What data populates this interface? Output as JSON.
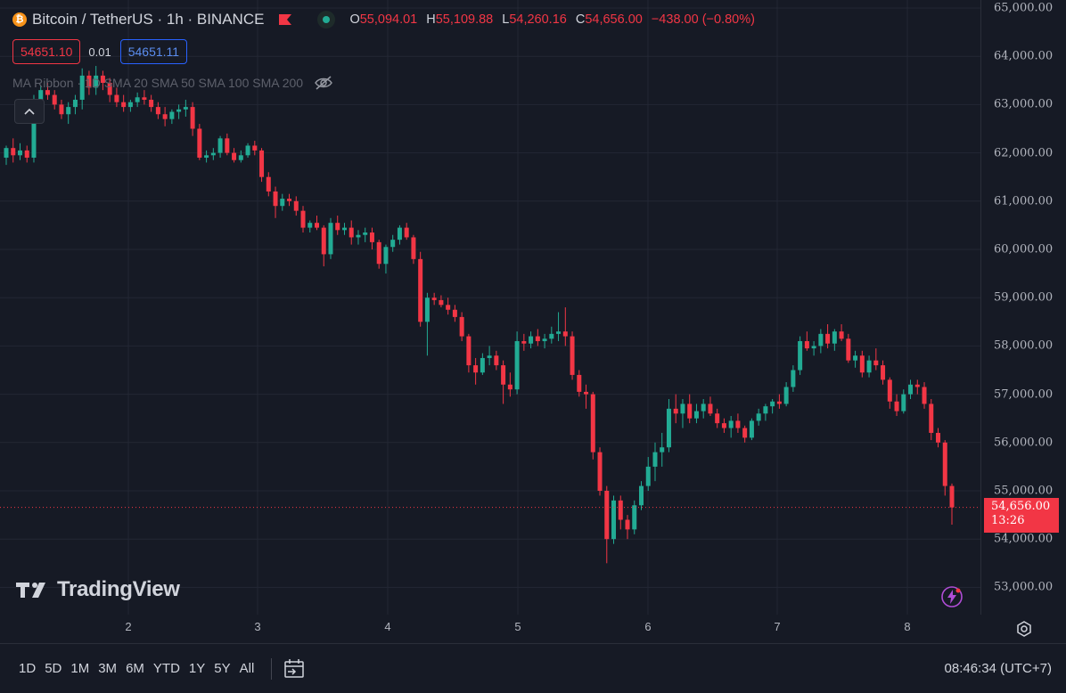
{
  "header": {
    "symbol_title": "Bitcoin / TetherUS · 1h · BINANCE",
    "logo_letter": "₿",
    "ohlc": [
      {
        "key": "O",
        "value": "55,094.01"
      },
      {
        "key": "H",
        "value": "55,109.88"
      },
      {
        "key": "L",
        "value": "54,260.16"
      },
      {
        "key": "C",
        "value": "54,656.00"
      }
    ],
    "change": "−438.00 (−0.80%)"
  },
  "quote": {
    "bid": "54651.10",
    "spread": "0.01",
    "ask": "54651.11"
  },
  "indicators_line": "MA Ribbon · 1D SMA 20 SMA 50 SMA 100 SMA 200",
  "price_axis": {
    "ticks": [
      "65,000.00",
      "64,000.00",
      "63,000.00",
      "62,000.00",
      "61,000.00",
      "60,000.00",
      "59,000.00",
      "58,000.00",
      "57,000.00",
      "56,000.00",
      "55,000.00",
      "54,000.00",
      "53,000.00"
    ],
    "tick_values": [
      65000,
      64000,
      63000,
      62000,
      61000,
      60000,
      59000,
      58000,
      57000,
      56000,
      55000,
      54000,
      53000
    ],
    "last_price": "54,656.00",
    "countdown": "13:26",
    "last_price_value": 54656
  },
  "time_axis": {
    "labels": [
      "2",
      "3",
      "4",
      "5",
      "6",
      "7",
      "8"
    ]
  },
  "ranges": [
    "1D",
    "5D",
    "1M",
    "3M",
    "6M",
    "YTD",
    "1Y",
    "5Y",
    "All"
  ],
  "clock": "08:46:34 (UTC+7)",
  "watermark": "TradingView",
  "colors": {
    "up": "#22ab94",
    "down": "#f23645",
    "background": "#161a25",
    "grid": "#232734"
  },
  "icons": [
    "bitcoin-icon",
    "flag-icon",
    "status-dot-icon",
    "eye-hidden-icon",
    "chevron-up-icon",
    "calendar-goto-icon",
    "flash-icon",
    "settings-icon"
  ],
  "chart_data": {
    "type": "candlestick",
    "ylim": [
      52700,
      65000
    ],
    "x_labels": [
      "2",
      "3",
      "4",
      "5",
      "6",
      "7",
      "8"
    ],
    "candles": [
      [
        61900,
        62150,
        61750,
        62100
      ],
      [
        62100,
        62300,
        61800,
        61950
      ],
      [
        61950,
        62200,
        61850,
        62050
      ],
      [
        62050,
        62150,
        61800,
        61900
      ],
      [
        61900,
        63200,
        61800,
        63000
      ],
      [
        63000,
        63400,
        62800,
        63300
      ],
      [
        63300,
        63450,
        63100,
        63200
      ],
      [
        63200,
        63300,
        62900,
        63000
      ],
      [
        63000,
        63100,
        62700,
        62800
      ],
      [
        62800,
        63050,
        62600,
        62950
      ],
      [
        62950,
        63200,
        62800,
        63100
      ],
      [
        63100,
        63750,
        62900,
        63600
      ],
      [
        63600,
        63700,
        63200,
        63350
      ],
      [
        63350,
        63800,
        63200,
        63600
      ],
      [
        63600,
        63700,
        63300,
        63450
      ],
      [
        63450,
        63550,
        63050,
        63200
      ],
      [
        63200,
        63350,
        62950,
        63050
      ],
      [
        63050,
        63200,
        62850,
        62950
      ],
      [
        62950,
        63100,
        62850,
        63050
      ],
      [
        63050,
        63250,
        62950,
        63150
      ],
      [
        63150,
        63300,
        63000,
        63100
      ],
      [
        63100,
        63200,
        62850,
        62950
      ],
      [
        62950,
        63050,
        62700,
        62800
      ],
      [
        62800,
        62950,
        62550,
        62700
      ],
      [
        62700,
        62900,
        62600,
        62850
      ],
      [
        62850,
        63000,
        62700,
        62900
      ],
      [
        62900,
        63100,
        62750,
        62950
      ],
      [
        62950,
        63050,
        62350,
        62500
      ],
      [
        62500,
        62600,
        61850,
        61900
      ],
      [
        61900,
        62050,
        61800,
        61950
      ],
      [
        61950,
        62100,
        61850,
        62000
      ],
      [
        62000,
        62350,
        61900,
        62300
      ],
      [
        62300,
        62400,
        61950,
        62000
      ],
      [
        62000,
        62100,
        61800,
        61850
      ],
      [
        61850,
        62050,
        61800,
        61950
      ],
      [
        61950,
        62200,
        61900,
        62150
      ],
      [
        62150,
        62250,
        61950,
        62050
      ],
      [
        62050,
        62100,
        61400,
        61500
      ],
      [
        61500,
        61600,
        61100,
        61200
      ],
      [
        61200,
        61300,
        60650,
        60900
      ],
      [
        60900,
        61150,
        60800,
        61050
      ],
      [
        61050,
        61150,
        60900,
        61000
      ],
      [
        61000,
        61100,
        60700,
        60800
      ],
      [
        60800,
        60900,
        60350,
        60450
      ],
      [
        60450,
        60600,
        60350,
        60550
      ],
      [
        60550,
        60700,
        60400,
        60450
      ],
      [
        60450,
        60500,
        59650,
        59900
      ],
      [
        59900,
        60650,
        59800,
        60550
      ],
      [
        60550,
        60700,
        60300,
        60400
      ],
      [
        60400,
        60550,
        60300,
        60450
      ],
      [
        60450,
        60600,
        60100,
        60250
      ],
      [
        60250,
        60400,
        60100,
        60300
      ],
      [
        60300,
        60450,
        60150,
        60350
      ],
      [
        60350,
        60450,
        60000,
        60150
      ],
      [
        60150,
        60200,
        59600,
        59700
      ],
      [
        59700,
        60100,
        59500,
        60050
      ],
      [
        60050,
        60300,
        59950,
        60200
      ],
      [
        60200,
        60500,
        60100,
        60450
      ],
      [
        60450,
        60550,
        60200,
        60250
      ],
      [
        60250,
        60300,
        59700,
        59800
      ],
      [
        59800,
        59950,
        58400,
        58500
      ],
      [
        58500,
        59100,
        57800,
        59000
      ],
      [
        59000,
        59100,
        58850,
        58950
      ],
      [
        58950,
        59050,
        58800,
        58850
      ],
      [
        58850,
        59000,
        58650,
        58750
      ],
      [
        58750,
        58850,
        58500,
        58600
      ],
      [
        58600,
        58700,
        58100,
        58200
      ],
      [
        58200,
        58250,
        57450,
        57600
      ],
      [
        57600,
        57750,
        57200,
        57450
      ],
      [
        57450,
        57850,
        57400,
        57750
      ],
      [
        57750,
        58000,
        57600,
        57800
      ],
      [
        57800,
        57900,
        57500,
        57600
      ],
      [
        57600,
        57700,
        56800,
        57200
      ],
      [
        57200,
        57450,
        56950,
        57100
      ],
      [
        57100,
        58300,
        57000,
        58100
      ],
      [
        58100,
        58250,
        57900,
        58050
      ],
      [
        58050,
        58300,
        57950,
        58200
      ],
      [
        58200,
        58350,
        58000,
        58100
      ],
      [
        58100,
        58250,
        57950,
        58150
      ],
      [
        58150,
        58400,
        58050,
        58250
      ],
      [
        58250,
        58700,
        58100,
        58300
      ],
      [
        58300,
        58800,
        58000,
        58200
      ],
      [
        58200,
        58300,
        57300,
        57400
      ],
      [
        57400,
        57500,
        56950,
        57050
      ],
      [
        57050,
        57200,
        56700,
        57000
      ],
      [
        57000,
        57050,
        55650,
        55800
      ],
      [
        55800,
        55900,
        54900,
        55000
      ],
      [
        55000,
        55100,
        53500,
        54000
      ],
      [
        54000,
        54900,
        53900,
        54800
      ],
      [
        54800,
        54900,
        54200,
        54400
      ],
      [
        54400,
        54500,
        54000,
        54200
      ],
      [
        54200,
        54800,
        54100,
        54700
      ],
      [
        54700,
        55200,
        54600,
        55100
      ],
      [
        55100,
        55700,
        55000,
        55500
      ],
      [
        55500,
        56000,
        55200,
        55800
      ],
      [
        55800,
        56200,
        55500,
        55900
      ],
      [
        55900,
        56900,
        55800,
        56700
      ],
      [
        56700,
        57000,
        56400,
        56600
      ],
      [
        56600,
        56900,
        56300,
        56800
      ],
      [
        56800,
        57000,
        56400,
        56500
      ],
      [
        56500,
        56800,
        56400,
        56650
      ],
      [
        56650,
        56900,
        56500,
        56800
      ],
      [
        56800,
        56950,
        56550,
        56600
      ],
      [
        56600,
        56700,
        56300,
        56400
      ],
      [
        56400,
        56500,
        56200,
        56300
      ],
      [
        56300,
        56550,
        56100,
        56450
      ],
      [
        56450,
        56600,
        56200,
        56300
      ],
      [
        56300,
        56350,
        56000,
        56100
      ],
      [
        56100,
        56500,
        56050,
        56450
      ],
      [
        56450,
        56700,
        56350,
        56600
      ],
      [
        56600,
        56800,
        56450,
        56750
      ],
      [
        56750,
        56900,
        56600,
        56850
      ],
      [
        56850,
        57000,
        56700,
        56800
      ],
      [
        56800,
        57250,
        56750,
        57150
      ],
      [
        57150,
        57600,
        57050,
        57500
      ],
      [
        57500,
        58200,
        57400,
        58100
      ],
      [
        58100,
        58300,
        57900,
        57950
      ],
      [
        57950,
        58100,
        57800,
        58000
      ],
      [
        58000,
        58350,
        57850,
        58250
      ],
      [
        58250,
        58450,
        57950,
        58050
      ],
      [
        58050,
        58350,
        57900,
        58300
      ],
      [
        58300,
        58450,
        58100,
        58150
      ],
      [
        58150,
        58250,
        57650,
        57700
      ],
      [
        57700,
        57900,
        57550,
        57800
      ],
      [
        57800,
        57900,
        57350,
        57450
      ],
      [
        57450,
        57800,
        57350,
        57700
      ],
      [
        57700,
        57950,
        57500,
        57600
      ],
      [
        57600,
        57700,
        57200,
        57300
      ],
      [
        57300,
        57350,
        56700,
        56850
      ],
      [
        56850,
        57000,
        56550,
        56650
      ],
      [
        56650,
        57100,
        56600,
        57000
      ],
      [
        57000,
        57300,
        56900,
        57200
      ],
      [
        57200,
        57300,
        57000,
        57150
      ],
      [
        57150,
        57250,
        56700,
        56800
      ],
      [
        56800,
        56900,
        56050,
        56200
      ],
      [
        56200,
        56300,
        55900,
        56000
      ],
      [
        56000,
        56050,
        54900,
        55100
      ],
      [
        55100,
        55150,
        54300,
        54656
      ]
    ]
  }
}
